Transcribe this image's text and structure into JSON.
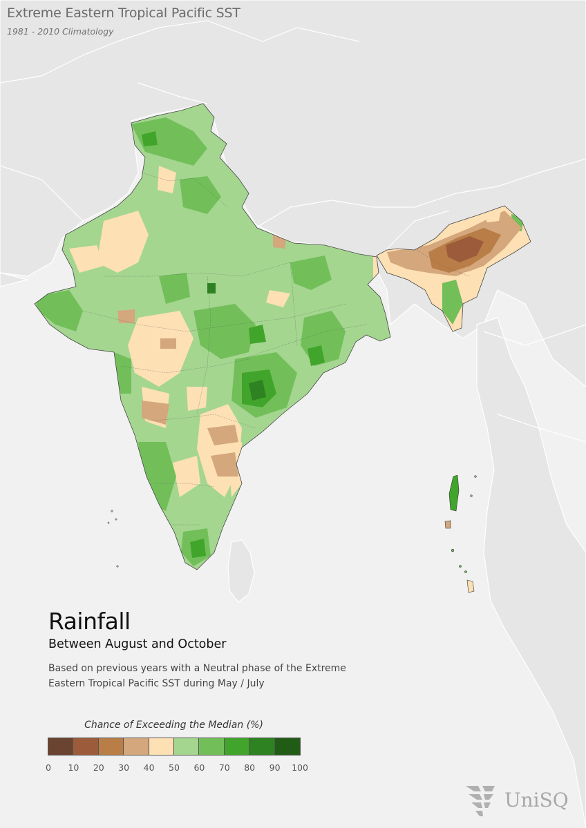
{
  "header": {
    "title": "Extreme Eastern Tropical Pacific SST",
    "subtitle": "1981 - 2010 Climatology"
  },
  "main": {
    "title": "Rainfall",
    "period": "Between August and October",
    "description": "Based on previous years with a Neutral phase of the Extreme Eastern Tropical Pacific SST during May / July"
  },
  "legend": {
    "title": "Chance of Exceeding the Median (%)",
    "ticks": [
      "0",
      "10",
      "20",
      "30",
      "40",
      "50",
      "60",
      "70",
      "80",
      "90",
      "100"
    ],
    "colors": [
      "#6b4331",
      "#9c5c3b",
      "#b97d47",
      "#d4a77d",
      "#fde0b4",
      "#a4d690",
      "#72bf5a",
      "#41a52b",
      "#2e8221",
      "#215c17"
    ]
  },
  "map": {
    "land_color": "#e6e6e6",
    "sea_color": "#f1f1f1"
  },
  "logo": {
    "text": "UniSQ"
  }
}
